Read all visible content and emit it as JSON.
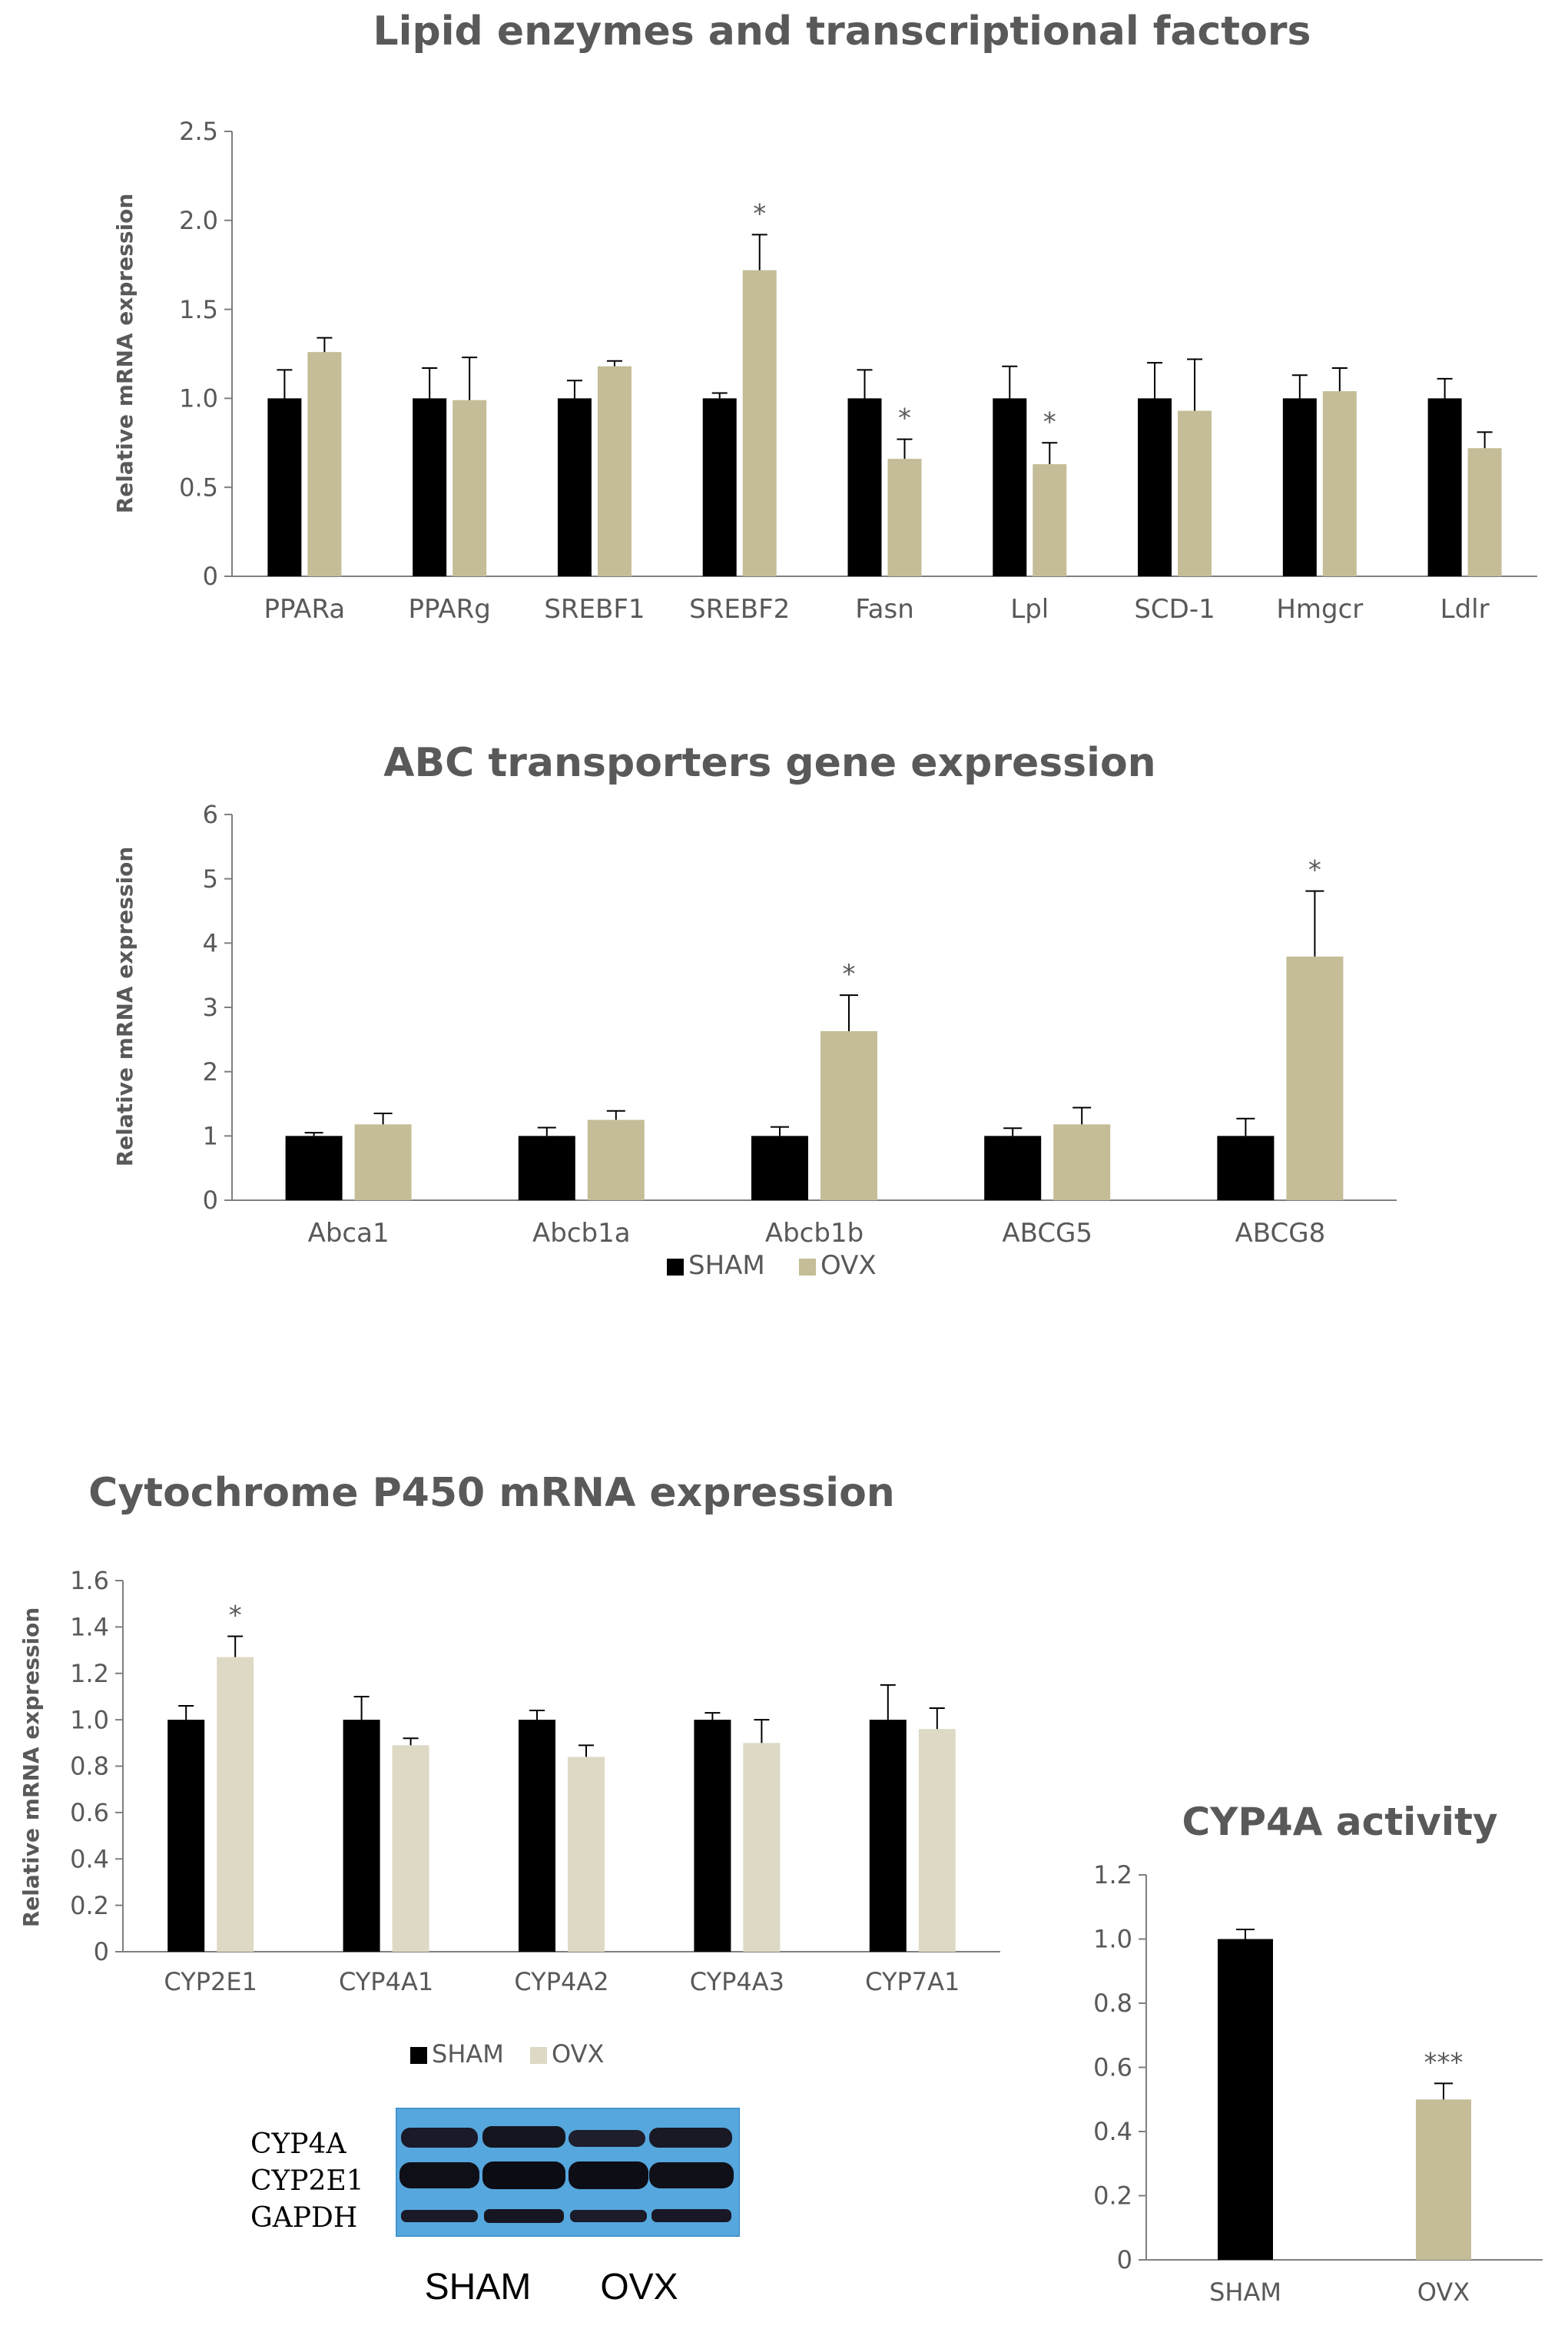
{
  "chart_data": [
    {
      "type": "bar",
      "title": "Lipid enzymes and transcriptional factors",
      "xlabel": "",
      "ylabel": "Relative mRNA expression",
      "ylim": [
        0,
        2.5
      ],
      "yticks": [
        "0",
        "0.5",
        "1.0",
        "1.5",
        "2.0",
        "2.5"
      ],
      "categories": [
        "PPARa",
        "PPARg",
        "SREBF1",
        "SREBF2",
        "Fasn",
        "Lpl",
        "SCD-1",
        "Hmgcr",
        "Ldlr"
      ],
      "series": [
        {
          "name": "SHAM",
          "color": "#000000",
          "values": [
            1.0,
            1.0,
            1.0,
            1.0,
            1.0,
            1.0,
            1.0,
            1.0,
            1.0
          ],
          "errors": [
            0.16,
            0.17,
            0.1,
            0.03,
            0.16,
            0.18,
            0.2,
            0.13,
            0.11
          ]
        },
        {
          "name": "OVX",
          "color": "#c4bd97",
          "values": [
            1.26,
            0.99,
            1.18,
            1.72,
            0.66,
            0.63,
            0.93,
            1.04,
            0.72
          ],
          "errors": [
            0.08,
            0.24,
            0.03,
            0.2,
            0.11,
            0.12,
            0.29,
            0.13,
            0.09
          ]
        }
      ],
      "annotations": [
        {
          "category": "SREBF2",
          "series": "OVX",
          "text": "*"
        },
        {
          "category": "Fasn",
          "series": "OVX",
          "text": "*"
        },
        {
          "category": "Lpl",
          "series": "OVX",
          "text": "*"
        }
      ]
    },
    {
      "type": "bar",
      "title": "ABC transporters gene expression",
      "xlabel": "",
      "ylabel": "Relative mRNA expression",
      "ylim": [
        0,
        6
      ],
      "yticks": [
        "0",
        "1",
        "2",
        "3",
        "4",
        "5",
        "6"
      ],
      "categories": [
        "Abca1",
        "Abcb1a",
        "Abcb1b",
        "ABCG5",
        "ABCG8"
      ],
      "series": [
        {
          "name": "SHAM",
          "color": "#000000",
          "values": [
            1.0,
            1.0,
            1.0,
            1.0,
            1.0
          ],
          "errors": [
            0.05,
            0.13,
            0.14,
            0.12,
            0.27
          ]
        },
        {
          "name": "OVX",
          "color": "#c4bd97",
          "values": [
            1.18,
            1.25,
            2.63,
            1.18,
            3.79
          ],
          "errors": [
            0.17,
            0.14,
            0.56,
            0.26,
            1.02
          ]
        }
      ],
      "annotations": [
        {
          "category": "Abcb1b",
          "series": "OVX",
          "text": "*"
        },
        {
          "category": "ABCG8",
          "series": "OVX",
          "text": "*"
        }
      ],
      "legend": [
        "SHAM",
        "OVX"
      ]
    },
    {
      "type": "bar",
      "title": "Cytochrome P450 mRNA expression",
      "xlabel": "",
      "ylabel": "Relative mRNA expression",
      "ylim": [
        0,
        1.6
      ],
      "yticks": [
        "0",
        "0.2",
        "0.4",
        "0.6",
        "0.8",
        "1.0",
        "1.2",
        "1.4",
        "1.6"
      ],
      "categories": [
        "CYP2E1",
        "CYP4A1",
        "CYP4A2",
        "CYP4A3",
        "CYP7A1"
      ],
      "series": [
        {
          "name": "SHAM",
          "color": "#000000",
          "values": [
            1.0,
            1.0,
            1.0,
            1.0,
            1.0
          ],
          "errors": [
            0.06,
            0.1,
            0.04,
            0.03,
            0.15
          ]
        },
        {
          "name": "OVX",
          "color": "#ddd9c4",
          "values": [
            1.27,
            0.89,
            0.84,
            0.9,
            0.96
          ],
          "errors": [
            0.09,
            0.03,
            0.05,
            0.1,
            0.09
          ]
        }
      ],
      "annotations": [
        {
          "category": "CYP2E1",
          "series": "OVX",
          "text": "*"
        }
      ],
      "legend": [
        "SHAM",
        "OVX"
      ]
    },
    {
      "type": "bar",
      "title": "CYP4A activity",
      "xlabel": "",
      "ylabel": "",
      "ylim": [
        0,
        1.2
      ],
      "yticks": [
        "0",
        "0.2",
        "0.4",
        "0.6",
        "0.8",
        "1.0",
        "1.2"
      ],
      "categories": [
        "SHAM",
        "OVX"
      ],
      "values": [
        1.0,
        0.5
      ],
      "errors": [
        0.03,
        0.05
      ],
      "colors": [
        "#000000",
        "#c4bd97"
      ],
      "annotations": [
        {
          "category": "OVX",
          "text": "***"
        }
      ]
    }
  ],
  "western_blot": {
    "bands": [
      "CYP4A",
      "CYP2E1",
      "GAPDH"
    ],
    "groups": [
      "SHAM",
      "OVX"
    ]
  }
}
